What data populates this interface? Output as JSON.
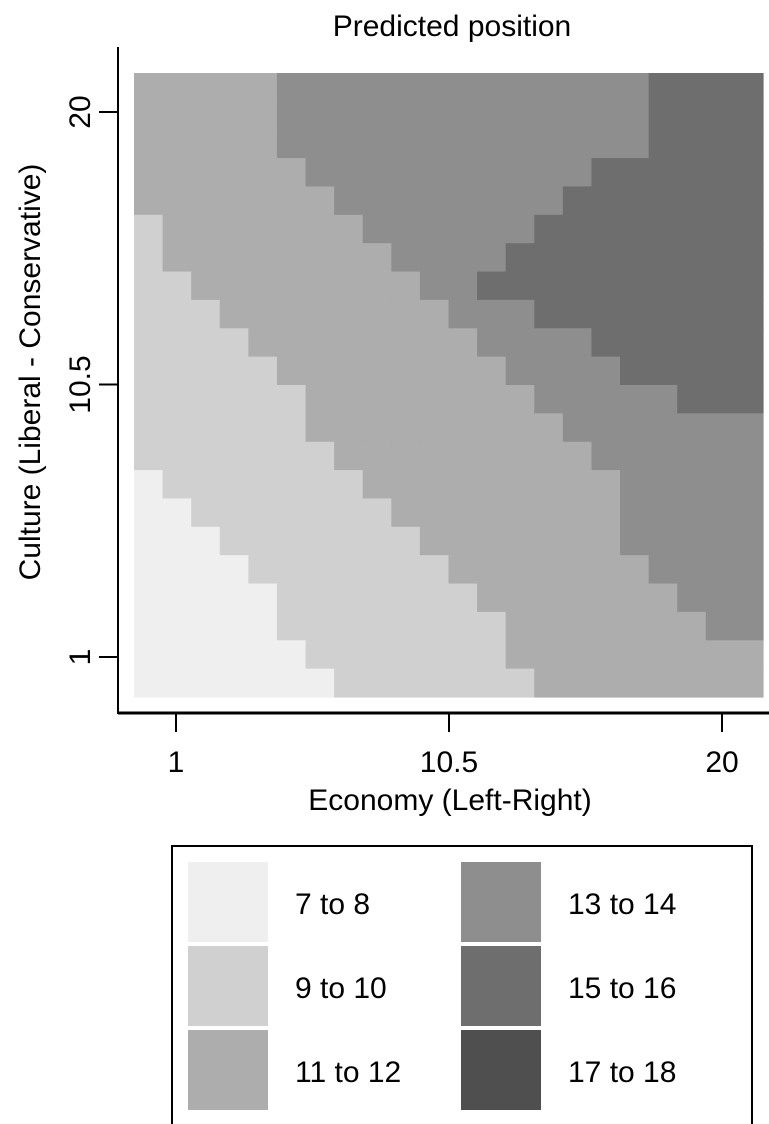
{
  "chart_data": {
    "type": "heatmap",
    "title": "Predicted position",
    "xlabel": "Economy (Left-Right)",
    "ylabel": "Culture (Liberal - Conservative)",
    "xlim": [
      1,
      20
    ],
    "ylim": [
      1,
      20
    ],
    "x_ticks": [
      "1",
      "10.5",
      "20"
    ],
    "y_ticks": [
      "1",
      "10.5",
      "20"
    ],
    "grid": false,
    "legend_position": "bottom",
    "bins": [
      {
        "label": "7 to 8",
        "color": "#efefef"
      },
      {
        "label": "9 to 10",
        "color": "#d0d0d0"
      },
      {
        "label": "11 to 12",
        "color": "#adadad"
      },
      {
        "label": "13 to 14",
        "color": "#8e8e8e"
      },
      {
        "label": "15 to 16",
        "color": "#6e6e6e"
      },
      {
        "label": "17 to 18",
        "color": "#4f4f4f"
      }
    ],
    "grid_size": [
      22,
      22
    ],
    "predicted_bin_index": [
      [
        2,
        2,
        2,
        2,
        2,
        3,
        3,
        3,
        3,
        3,
        3,
        3,
        3,
        3,
        3,
        3,
        3,
        3,
        4,
        4,
        4,
        4
      ],
      [
        2,
        2,
        2,
        2,
        2,
        3,
        3,
        3,
        3,
        3,
        3,
        3,
        3,
        3,
        3,
        3,
        3,
        3,
        4,
        4,
        4,
        4
      ],
      [
        2,
        2,
        2,
        2,
        2,
        3,
        3,
        3,
        3,
        3,
        3,
        3,
        3,
        3,
        3,
        3,
        3,
        3,
        4,
        4,
        4,
        4
      ],
      [
        2,
        2,
        2,
        2,
        2,
        2,
        3,
        3,
        3,
        3,
        3,
        3,
        3,
        3,
        3,
        3,
        4,
        4,
        4,
        4,
        4,
        4
      ],
      [
        2,
        2,
        2,
        2,
        2,
        2,
        2,
        3,
        3,
        3,
        3,
        3,
        3,
        3,
        3,
        4,
        4,
        4,
        4,
        4,
        4,
        4
      ],
      [
        1,
        2,
        2,
        2,
        2,
        2,
        2,
        2,
        3,
        3,
        3,
        3,
        3,
        3,
        4,
        4,
        4,
        4,
        4,
        4,
        4,
        4
      ],
      [
        1,
        2,
        2,
        2,
        2,
        2,
        2,
        2,
        2,
        3,
        3,
        3,
        3,
        4,
        4,
        4,
        4,
        4,
        4,
        4,
        4,
        4
      ],
      [
        1,
        1,
        2,
        2,
        2,
        2,
        2,
        2,
        2,
        2,
        3,
        3,
        4,
        4,
        4,
        4,
        4,
        4,
        4,
        4,
        4,
        4
      ],
      [
        1,
        1,
        1,
        2,
        2,
        2,
        2,
        2,
        2,
        2,
        2,
        3,
        3,
        3,
        4,
        4,
        4,
        4,
        4,
        4,
        4,
        4
      ],
      [
        1,
        1,
        1,
        1,
        2,
        2,
        2,
        2,
        2,
        2,
        2,
        2,
        3,
        3,
        3,
        3,
        4,
        4,
        4,
        4,
        4,
        4
      ],
      [
        1,
        1,
        1,
        1,
        1,
        2,
        2,
        2,
        2,
        2,
        2,
        2,
        2,
        3,
        3,
        3,
        3,
        4,
        4,
        4,
        4,
        4
      ],
      [
        1,
        1,
        1,
        1,
        1,
        1,
        2,
        2,
        2,
        2,
        2,
        2,
        2,
        2,
        3,
        3,
        3,
        3,
        3,
        4,
        4,
        4
      ],
      [
        1,
        1,
        1,
        1,
        1,
        1,
        2,
        2,
        2,
        2,
        2,
        2,
        2,
        2,
        2,
        3,
        3,
        3,
        3,
        3,
        3,
        3
      ],
      [
        1,
        1,
        1,
        1,
        1,
        1,
        1,
        2,
        2,
        2,
        2,
        2,
        2,
        2,
        2,
        2,
        3,
        3,
        3,
        3,
        3,
        3
      ],
      [
        0,
        1,
        1,
        1,
        1,
        1,
        1,
        1,
        2,
        2,
        2,
        2,
        2,
        2,
        2,
        2,
        2,
        3,
        3,
        3,
        3,
        3
      ],
      [
        0,
        0,
        1,
        1,
        1,
        1,
        1,
        1,
        1,
        2,
        2,
        2,
        2,
        2,
        2,
        2,
        2,
        3,
        3,
        3,
        3,
        3
      ],
      [
        0,
        0,
        0,
        1,
        1,
        1,
        1,
        1,
        1,
        1,
        2,
        2,
        2,
        2,
        2,
        2,
        2,
        3,
        3,
        3,
        3,
        3
      ],
      [
        0,
        0,
        0,
        0,
        1,
        1,
        1,
        1,
        1,
        1,
        1,
        2,
        2,
        2,
        2,
        2,
        2,
        2,
        3,
        3,
        3,
        3
      ],
      [
        0,
        0,
        0,
        0,
        0,
        1,
        1,
        1,
        1,
        1,
        1,
        1,
        2,
        2,
        2,
        2,
        2,
        2,
        2,
        3,
        3,
        3
      ],
      [
        0,
        0,
        0,
        0,
        0,
        1,
        1,
        1,
        1,
        1,
        1,
        1,
        1,
        2,
        2,
        2,
        2,
        2,
        2,
        2,
        3,
        3
      ],
      [
        0,
        0,
        0,
        0,
        0,
        0,
        1,
        1,
        1,
        1,
        1,
        1,
        1,
        2,
        2,
        2,
        2,
        2,
        2,
        2,
        2,
        2
      ],
      [
        0,
        0,
        0,
        0,
        0,
        0,
        0,
        1,
        1,
        1,
        1,
        1,
        1,
        1,
        2,
        2,
        2,
        2,
        2,
        2,
        2,
        2
      ]
    ]
  }
}
